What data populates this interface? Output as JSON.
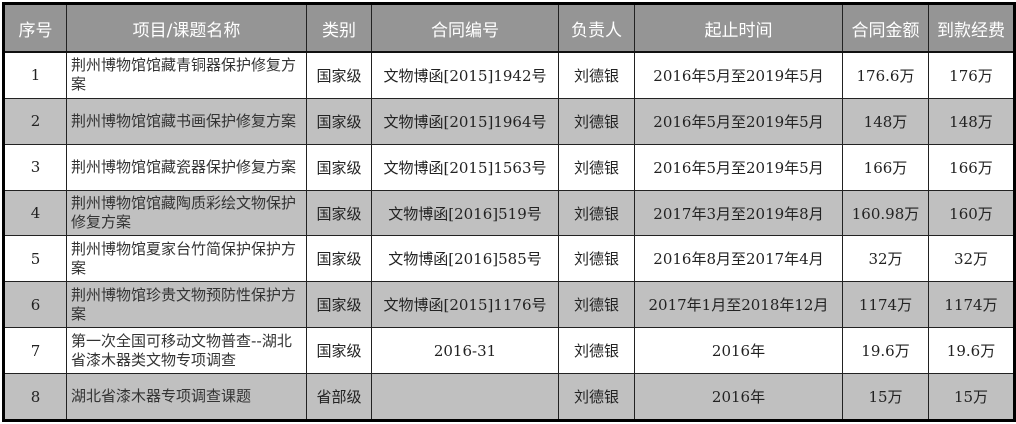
{
  "headers": [
    "序号",
    "项目/课题名称",
    "类别",
    "合同编号",
    "负责人",
    "起止时间",
    "合同金额",
    "到款经费"
  ],
  "rows": [
    {
      "no": "1",
      "name": "荆州博物馆馆藏青铜器保护修复方案",
      "category": "国家级",
      "contract": "文物博函[2015]1942号",
      "person": "刘德银",
      "period": "2016年5月至2019年5月",
      "amount": "176.6万",
      "received": "176万"
    },
    {
      "no": "2",
      "name": "荆州博物馆馆藏书画保护修复方案",
      "category": "国家级",
      "contract": "文物博函[2015]1964号",
      "person": "刘德银",
      "period": "2016年5月至2019年5月",
      "amount": "148万",
      "received": "148万"
    },
    {
      "no": "3",
      "name": "荆州博物馆馆藏瓷器保护修复方案",
      "category": "国家级",
      "contract": "文物博函[2015]1563号",
      "person": "刘德银",
      "period": "2016年5月至2019年5月",
      "amount": "166万",
      "received": "166万"
    },
    {
      "no": "4",
      "name": "荆州博物馆馆藏陶质彩绘文物保护修复方案",
      "category": "国家级",
      "contract": "文物博函[2016]519号",
      "person": "刘德银",
      "period": "2017年3月至2019年8月",
      "amount": "160.98万",
      "received": "160万"
    },
    {
      "no": "5",
      "name": "荆州博物馆夏家台竹简保护保护方案",
      "category": "国家级",
      "contract": "文物博函[2016]585号",
      "person": "刘德银",
      "period": "2016年8月至2017年4月",
      "amount": "32万",
      "received": "32万"
    },
    {
      "no": "6",
      "name": "荆州博物馆珍贵文物预防性保护方案",
      "category": "国家级",
      "contract": "文物博函[2015]1176号",
      "person": "刘德银",
      "period": "2017年1月至2018年12月",
      "amount": "1174万",
      "received": "1174万"
    },
    {
      "no": "7",
      "name": "第一次全国可移动文物普查--湖北省漆木器类文物专项调查",
      "category": "国家级",
      "contract": "2016-31",
      "person": "刘德银",
      "period": "2016年",
      "amount": "19.6万",
      "received": "19.6万"
    },
    {
      "no": "8",
      "name": "湖北省漆木器专项调查课题",
      "category": "省部级",
      "contract": "",
      "person": "刘德银",
      "period": "2016年",
      "amount": "15万",
      "received": "15万"
    }
  ]
}
